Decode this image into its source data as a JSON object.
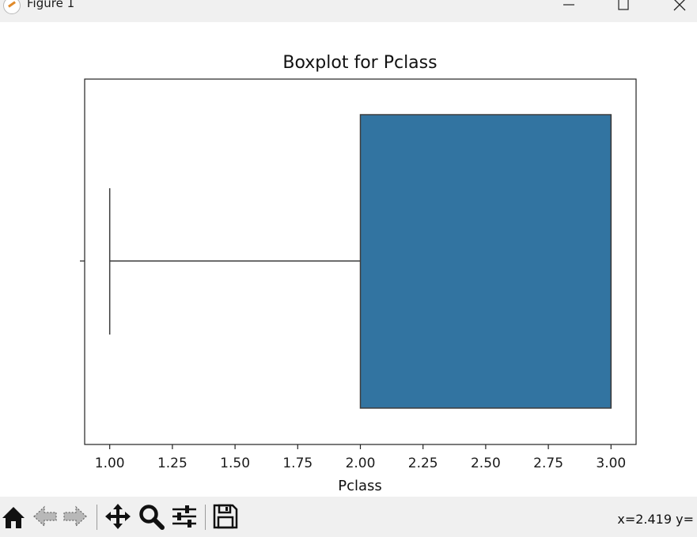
{
  "window": {
    "title": "Figure 1"
  },
  "toolbar": {
    "tools": [
      "home-icon",
      "back-arrow-icon",
      "forward-arrow-icon",
      "pan-icon",
      "zoom-icon",
      "configure-subplots-icon",
      "save-icon"
    ],
    "coords_text": "x=2.419 y="
  },
  "chart_data": {
    "type": "boxplot",
    "title": "Boxplot for Pclass",
    "xlabel": "Pclass",
    "xlim": [
      0.9,
      3.1
    ],
    "x_ticks": [
      1.0,
      1.25,
      1.5,
      1.75,
      2.0,
      2.25,
      2.5,
      2.75,
      3.0
    ],
    "x_tick_labels": [
      "1.00",
      "1.25",
      "1.50",
      "1.75",
      "2.00",
      "2.25",
      "2.50",
      "2.75",
      "3.00"
    ],
    "orientation": "horizontal",
    "box": {
      "whisker_low": 1.0,
      "q1": 2.0,
      "median": 3.0,
      "q3": 3.0,
      "whisker_high": 3.0
    },
    "box_color": "#3274a1",
    "grid": false
  }
}
